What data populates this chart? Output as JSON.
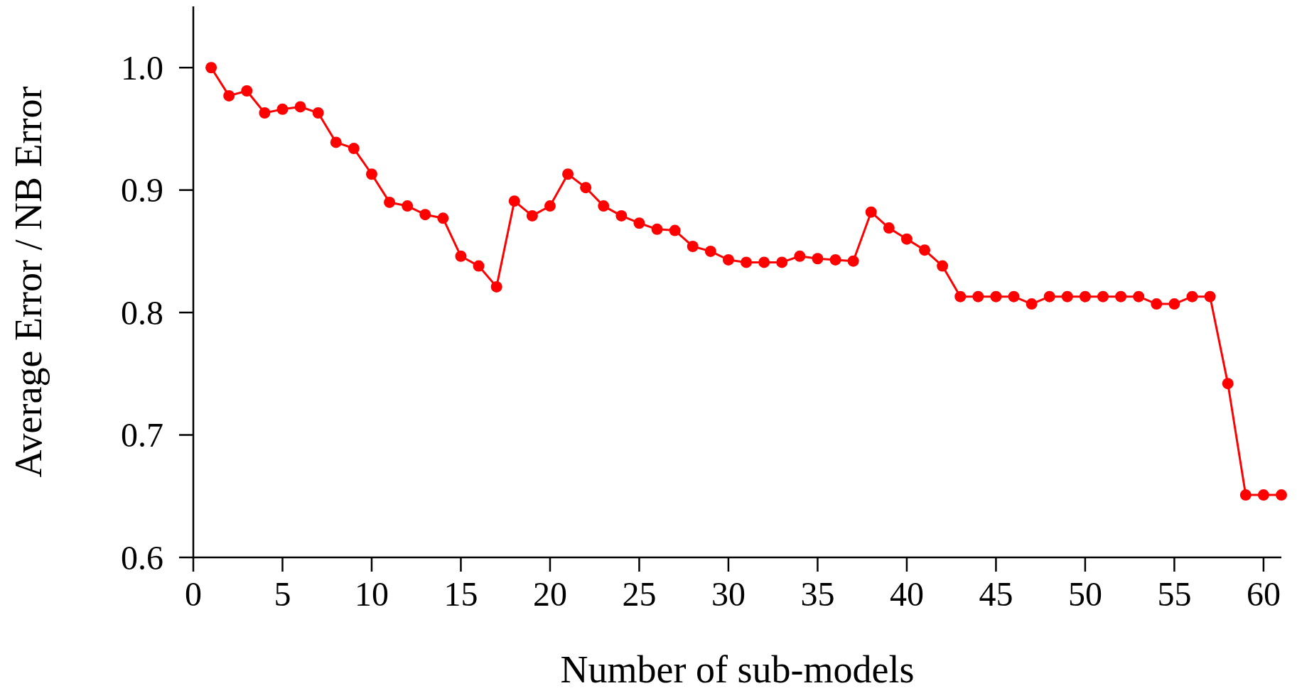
{
  "chart_data": {
    "type": "line",
    "xlabel": "Number of sub-models",
    "ylabel": "Average Error / NB Error",
    "x": [
      1,
      2,
      3,
      4,
      5,
      6,
      7,
      8,
      9,
      10,
      11,
      12,
      13,
      14,
      15,
      16,
      17,
      18,
      19,
      20,
      21,
      22,
      23,
      24,
      25,
      26,
      27,
      28,
      29,
      30,
      31,
      32,
      33,
      34,
      35,
      36,
      37,
      38,
      39,
      40,
      41,
      42,
      43,
      44,
      45,
      46,
      47,
      48,
      49,
      50,
      51,
      52,
      53,
      54,
      55,
      56,
      57,
      58,
      59,
      60,
      61
    ],
    "series": [
      {
        "color": "#ff0000",
        "values": [
          1.0,
          0.977,
          0.981,
          0.963,
          0.966,
          0.968,
          0.963,
          0.939,
          0.934,
          0.913,
          0.89,
          0.887,
          0.88,
          0.877,
          0.846,
          0.838,
          0.821,
          0.891,
          0.879,
          0.887,
          0.913,
          0.902,
          0.887,
          0.879,
          0.873,
          0.868,
          0.867,
          0.854,
          0.85,
          0.843,
          0.841,
          0.841,
          0.841,
          0.846,
          0.844,
          0.843,
          0.842,
          0.882,
          0.869,
          0.86,
          0.851,
          0.838,
          0.813,
          0.813,
          0.813,
          0.813,
          0.807,
          0.813,
          0.813,
          0.813,
          0.813,
          0.813,
          0.813,
          0.807,
          0.807,
          0.813,
          0.813,
          0.742,
          0.651,
          0.651,
          0.651
        ]
      }
    ],
    "xlim": [
      0,
      61
    ],
    "xticks": [
      0,
      5,
      10,
      15,
      20,
      25,
      30,
      35,
      40,
      45,
      50,
      55,
      60
    ],
    "ylim": [
      0.6,
      1.05
    ],
    "yticks": [
      {
        "value": 0.6,
        "label": "0.6"
      },
      {
        "value": 0.7,
        "label": "0.7"
      },
      {
        "value": 0.8,
        "label": "0.8"
      },
      {
        "value": 0.9,
        "label": "0.9"
      },
      {
        "value": 1.0,
        "label": "1.0"
      }
    ],
    "grid": false,
    "marker": "circle",
    "line_style": "solid"
  }
}
